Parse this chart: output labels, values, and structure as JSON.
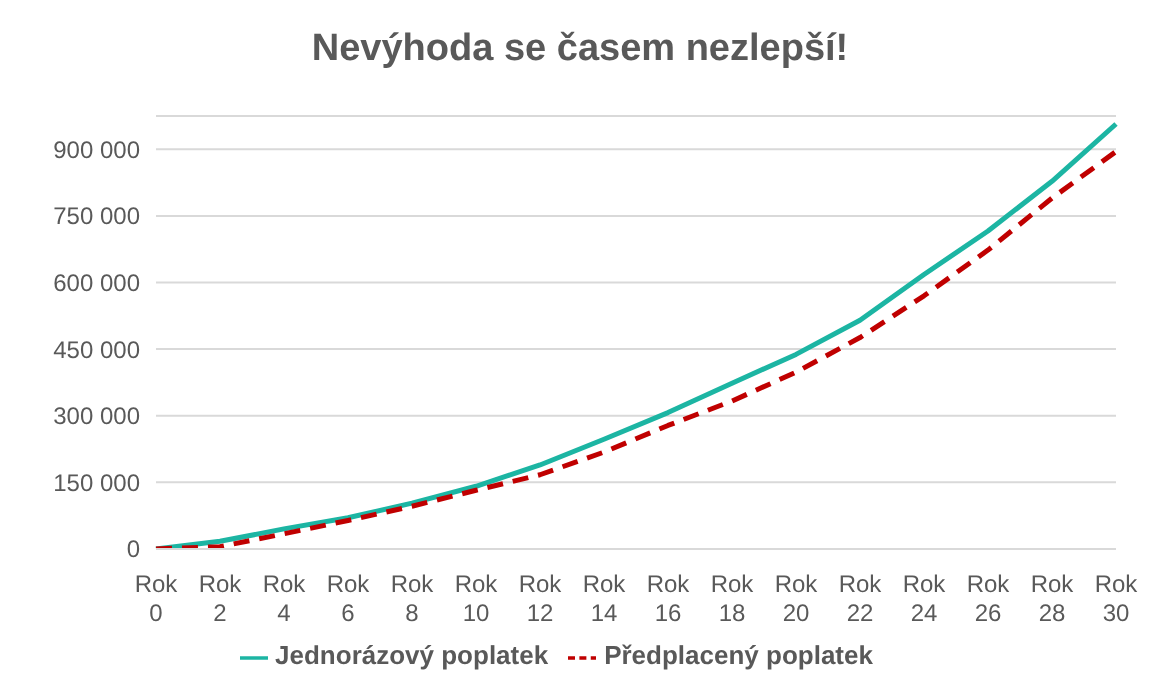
{
  "chart_data": {
    "type": "line",
    "title": "Nevýhoda se časem nezlepší!",
    "categories": [
      "Rok 0",
      "Rok 2",
      "Rok 4",
      "Rok 6",
      "Rok 8",
      "Rok 10",
      "Rok 12",
      "Rok 14",
      "Rok 16",
      "Rok 18",
      "Rok 20",
      "Rok 22",
      "Rok 24",
      "Rok 26",
      "Rok 28",
      "Rok 30"
    ],
    "series": [
      {
        "name": "Jednorázový poplatek",
        "color": "#1cb5a3",
        "line_style": "solid",
        "values": [
          0,
          17000,
          45000,
          70000,
          103000,
          141000,
          189000,
          247000,
          307000,
          373000,
          438000,
          515000,
          618000,
          716000,
          828000,
          957000
        ]
      },
      {
        "name": "Předplacený poplatek",
        "color": "#c00000",
        "line_style": "dashed",
        "values": [
          0,
          5000,
          34000,
          64000,
          96000,
          132000,
          167000,
          218000,
          278000,
          333000,
          398000,
          476000,
          570000,
          673000,
          790000,
          895000
        ]
      }
    ],
    "ylim": [
      0,
      975000
    ],
    "yticks": [
      {
        "value": 0,
        "label": "0"
      },
      {
        "value": 150000,
        "label": "150 000"
      },
      {
        "value": 300000,
        "label": "300 000"
      },
      {
        "value": 450000,
        "label": "450 000"
      },
      {
        "value": 600000,
        "label": "600 000"
      },
      {
        "value": 750000,
        "label": "750 000"
      },
      {
        "value": 900000,
        "label": "900 000"
      }
    ],
    "grid": "y",
    "legend": "bottom",
    "marker": "none"
  }
}
